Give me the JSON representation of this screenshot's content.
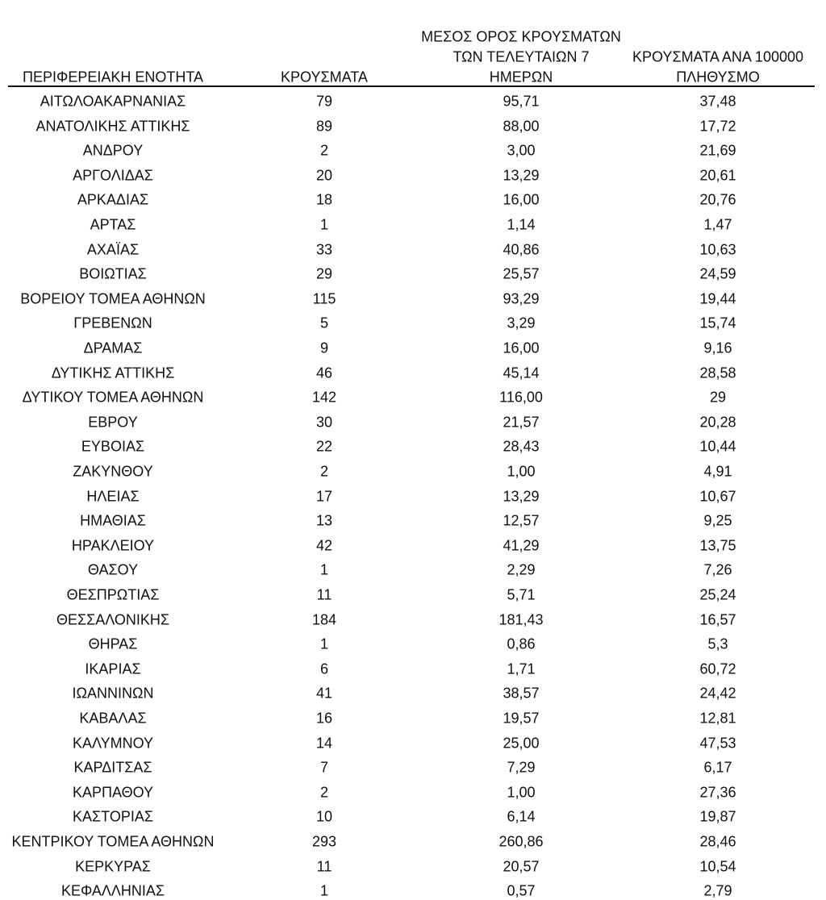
{
  "table": {
    "header": [
      [
        "ΠΕΡΙΦΕΡΕΙΑΚΗ ΕΝΟΤΗΤΑ"
      ],
      [
        "ΚΡΟΥΣΜΑΤΑ"
      ],
      [
        "ΜΕΣΟΣ ΟΡΟΣ ΚΡΟΥΣΜΑΤΩΝ",
        "ΤΩΝ ΤΕΛΕΥΤΑΙΩΝ 7",
        "ΗΜΕΡΩΝ"
      ],
      [
        "ΚΡΟΥΣΜΑΤΑ ΑΝΑ 100000",
        "ΠΛΗΘΥΣΜΟ"
      ]
    ],
    "rows": [
      [
        "ΑΙΤΩΛΟΑΚΑΡΝΑΝΙΑΣ",
        "79",
        "95,71",
        "37,48"
      ],
      [
        "ΑΝΑΤΟΛΙΚΗΣ ΑΤΤΙΚΗΣ",
        "89",
        "88,00",
        "17,72"
      ],
      [
        "ΑΝΔΡΟΥ",
        "2",
        "3,00",
        "21,69"
      ],
      [
        "ΑΡΓΟΛΙΔΑΣ",
        "20",
        "13,29",
        "20,61"
      ],
      [
        "ΑΡΚΑΔΙΑΣ",
        "18",
        "16,00",
        "20,76"
      ],
      [
        "ΑΡΤΑΣ",
        "1",
        "1,14",
        "1,47"
      ],
      [
        "ΑΧΑΪΑΣ",
        "33",
        "40,86",
        "10,63"
      ],
      [
        "ΒΟΙΩΤΙΑΣ",
        "29",
        "25,57",
        "24,59"
      ],
      [
        "ΒΟΡΕΙΟΥ ΤΟΜΕΑ ΑΘΗΝΩΝ",
        "115",
        "93,29",
        "19,44"
      ],
      [
        "ΓΡΕΒΕΝΩΝ",
        "5",
        "3,29",
        "15,74"
      ],
      [
        "ΔΡΑΜΑΣ",
        "9",
        "16,00",
        "9,16"
      ],
      [
        "ΔΥΤΙΚΗΣ ΑΤΤΙΚΗΣ",
        "46",
        "45,14",
        "28,58"
      ],
      [
        "ΔΥΤΙΚΟΥ ΤΟΜΕΑ ΑΘΗΝΩΝ",
        "142",
        "116,00",
        "29"
      ],
      [
        "ΕΒΡΟΥ",
        "30",
        "21,57",
        "20,28"
      ],
      [
        "ΕΥΒΟΙΑΣ",
        "22",
        "28,43",
        "10,44"
      ],
      [
        "ΖΑΚΥΝΘΟΥ",
        "2",
        "1,00",
        "4,91"
      ],
      [
        "ΗΛΕΙΑΣ",
        "17",
        "13,29",
        "10,67"
      ],
      [
        "ΗΜΑΘΙΑΣ",
        "13",
        "12,57",
        "9,25"
      ],
      [
        "ΗΡΑΚΛΕΙΟΥ",
        "42",
        "41,29",
        "13,75"
      ],
      [
        "ΘΑΣΟΥ",
        "1",
        "2,29",
        "7,26"
      ],
      [
        "ΘΕΣΠΡΩΤΙΑΣ",
        "11",
        "5,71",
        "25,24"
      ],
      [
        "ΘΕΣΣΑΛΟΝΙΚΗΣ",
        "184",
        "181,43",
        "16,57"
      ],
      [
        "ΘΗΡΑΣ",
        "1",
        "0,86",
        "5,3"
      ],
      [
        "ΙΚΑΡΙΑΣ",
        "6",
        "1,71",
        "60,72"
      ],
      [
        "ΙΩΑΝΝΙΝΩΝ",
        "41",
        "38,57",
        "24,42"
      ],
      [
        "ΚΑΒΑΛΑΣ",
        "16",
        "19,57",
        "12,81"
      ],
      [
        "ΚΑΛΥΜΝΟΥ",
        "14",
        "25,00",
        "47,53"
      ],
      [
        "ΚΑΡΔΙΤΣΑΣ",
        "7",
        "7,29",
        "6,17"
      ],
      [
        "ΚΑΡΠΑΘΟΥ",
        "2",
        "1,00",
        "27,36"
      ],
      [
        "ΚΑΣΤΟΡΙΑΣ",
        "10",
        "6,14",
        "19,87"
      ],
      [
        "ΚΕΝΤΡΙΚΟΥ ΤΟΜΕΑ ΑΘΗΝΩΝ",
        "293",
        "260,86",
        "28,46"
      ],
      [
        "ΚΕΡΚΥΡΑΣ",
        "11",
        "20,57",
        "10,54"
      ],
      [
        "ΚΕΦΑΛΛΗΝΙΑΣ",
        "1",
        "0,57",
        "2,79"
      ]
    ]
  }
}
